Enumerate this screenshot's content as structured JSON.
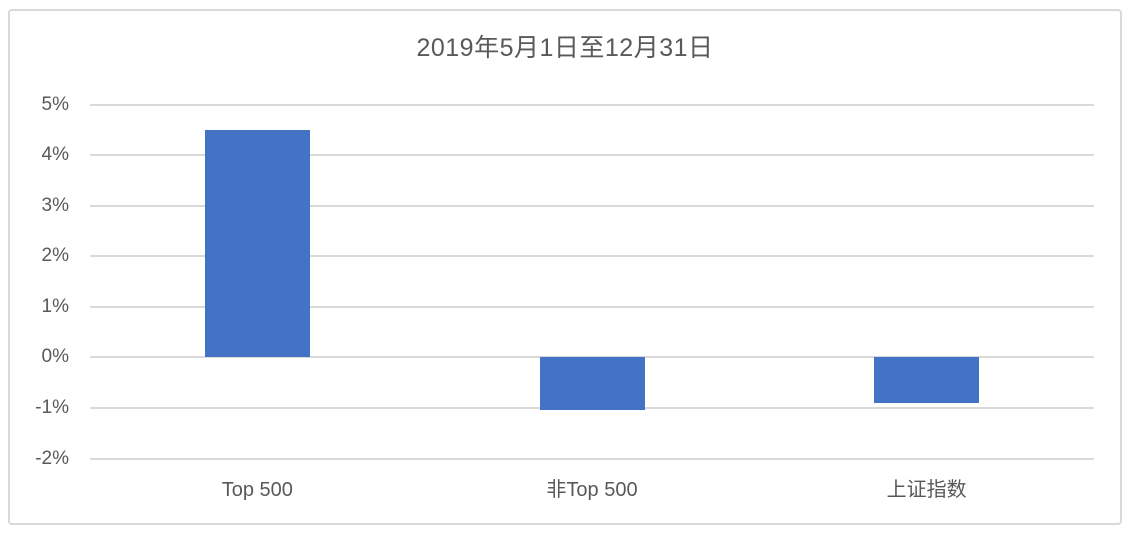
{
  "chart_data": {
    "type": "bar",
    "title": "2019年5月1日至12月31日",
    "categories": [
      "Top 500",
      "非Top 500",
      "上证指数"
    ],
    "values": [
      4.5,
      -1.05,
      -0.9
    ],
    "xlabel": "",
    "ylabel": "",
    "ylim": [
      -2,
      5
    ],
    "ytick_step": 1,
    "ytick_labels": [
      "5%",
      "4%",
      "3%",
      "2%",
      "1%",
      "0%",
      "-1%",
      "-2%"
    ],
    "grid": true,
    "legend": false,
    "colors": {
      "bar": "#4472C4",
      "gridline": "#D9D9D9",
      "frame_border": "#D9D9D9",
      "axis_text": "#595959",
      "title_text": "#595959",
      "background": "#FFFFFF"
    }
  }
}
